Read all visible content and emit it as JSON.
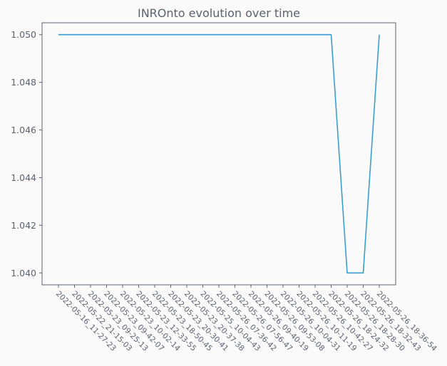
{
  "chart_data": {
    "type": "line",
    "title": "INROnto evolution over time",
    "xlabel": "",
    "ylabel": "",
    "grid": false,
    "colors": {
      "line": "#3a9fd0",
      "axis": "#5a6270",
      "background": "#fafafa"
    },
    "x": [
      "2022-05-16_11-27-23",
      "2022-05-22_21-15-03",
      "2022-05-23_09-25-13",
      "2022-05-23_09-42-07",
      "2022-05-23_10-02-14",
      "2022-05-23_12-33-55",
      "2022-05-23_18-50-45",
      "2022-05-23_20-30-41",
      "2022-05-23_20-37-38",
      "2022-05-25_10-04-43",
      "2022-05-26_07-36-42",
      "2022-05-26_07-56-47",
      "2022-05-26_09-40-19",
      "2022-05-26_09-53-08",
      "2022-05-26_10-04-31",
      "2022-05-26_10-11-19",
      "2022-05-26_10-42-27",
      "2022-05-26_18-24-32",
      "2022-05-26_18-28-30",
      "2022-05-26_18-32-43",
      "2022-05-26_18-36-54"
    ],
    "series": [
      {
        "values": [
          1.05,
          1.05,
          1.05,
          1.05,
          1.05,
          1.05,
          1.05,
          1.05,
          1.05,
          1.05,
          1.05,
          1.05,
          1.05,
          1.05,
          1.05,
          1.05,
          1.05,
          1.05,
          1.04,
          1.04,
          1.05
        ]
      }
    ],
    "yticks": [
      "1.040",
      "1.042",
      "1.044",
      "1.046",
      "1.048",
      "1.050"
    ],
    "ylim": [
      1.0395,
      1.0505
    ]
  }
}
